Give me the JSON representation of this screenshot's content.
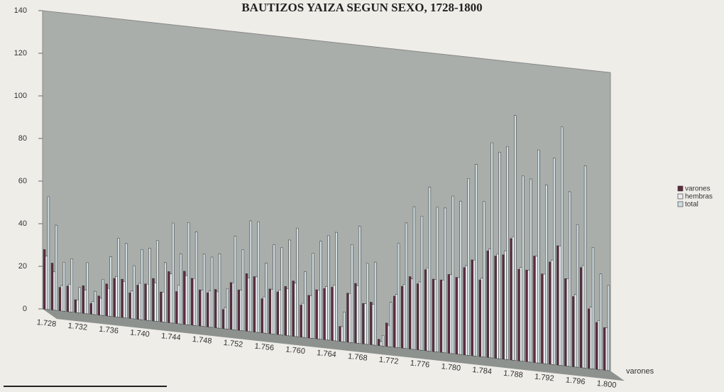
{
  "chart_data": {
    "type": "bar",
    "title": "BAUTIZOS YAIZA SEGUN SEXO, 1728-1800",
    "categories": [
      "1.728",
      null,
      null,
      null,
      "1.732",
      null,
      null,
      null,
      "1.736",
      null,
      null,
      null,
      "1.740",
      null,
      null,
      null,
      "1.744",
      null,
      null,
      null,
      "1.748",
      null,
      null,
      null,
      "1.752",
      null,
      null,
      null,
      "1.756",
      null,
      null,
      null,
      "1.760",
      null,
      null,
      null,
      "1.764",
      null,
      null,
      null,
      "1.768",
      null,
      null,
      null,
      "1.772",
      null,
      null,
      null,
      "1.776",
      null,
      null,
      null,
      "1.780",
      null,
      null,
      null,
      "1.784",
      null,
      null,
      null,
      "1.788",
      null,
      null,
      null,
      "1.792",
      null,
      null,
      null,
      "1.796",
      null,
      null,
      null,
      "1.800"
    ],
    "series": [
      {
        "name": "varones",
        "color": "#5e2c3e",
        "values": [
          28,
          22,
          11,
          12,
          6,
          13,
          5,
          9,
          15,
          18,
          18,
          12,
          16,
          17,
          20,
          14,
          24,
          15,
          25,
          22,
          17,
          16,
          18,
          9,
          22,
          19,
          27,
          26,
          16,
          21,
          20,
          23,
          26,
          15,
          20,
          23,
          24,
          25,
          7,
          23,
          28,
          19,
          20,
          3,
          11,
          24,
          29,
          34,
          31,
          38,
          34,
          34,
          37,
          36,
          41,
          45,
          36,
          50,
          48,
          49,
          57,
          43,
          43,
          50,
          42,
          48,
          56,
          41,
          33,
          47,
          28,
          22,
          20
        ]
      },
      {
        "name": "hembras",
        "color": "#ecebf0",
        "values": [
          25,
          18,
          12,
          13,
          6,
          11,
          6,
          8,
          13,
          19,
          17,
          13,
          17,
          17,
          18,
          14,
          23,
          18,
          23,
          22,
          17,
          17,
          17,
          10,
          22,
          19,
          25,
          26,
          17,
          21,
          21,
          22,
          25,
          16,
          20,
          23,
          25,
          26,
          7,
          23,
          27,
          19,
          19,
          2,
          10,
          25,
          30,
          33,
          32,
          39,
          34,
          34,
          37,
          36,
          42,
          45,
          37,
          51,
          49,
          51,
          58,
          44,
          43,
          50,
          42,
          49,
          56,
          41,
          34,
          48,
          29,
          23,
          20
        ]
      },
      {
        "name": "total",
        "color": "#cfdde2",
        "values": [
          53,
          40,
          23,
          25,
          12,
          24,
          11,
          17,
          28,
          37,
          35,
          25,
          33,
          34,
          38,
          28,
          47,
          33,
          48,
          44,
          34,
          33,
          35,
          19,
          44,
          38,
          52,
          52,
          33,
          42,
          41,
          45,
          51,
          31,
          40,
          46,
          49,
          51,
          14,
          46,
          55,
          38,
          39,
          5,
          21,
          49,
          59,
          67,
          63,
          77,
          68,
          68,
          74,
          72,
          83,
          90,
          73,
          101,
          97,
          100,
          115,
          87,
          86,
          100,
          84,
          97,
          112,
          82,
          67,
          95,
          57,
          45,
          40
        ]
      }
    ],
    "depth_axis_label": "varones",
    "ylim": [
      0,
      140
    ],
    "yticks": [
      0,
      20,
      40,
      60,
      80,
      100,
      120,
      140
    ],
    "grid": false,
    "legend": "right"
  }
}
